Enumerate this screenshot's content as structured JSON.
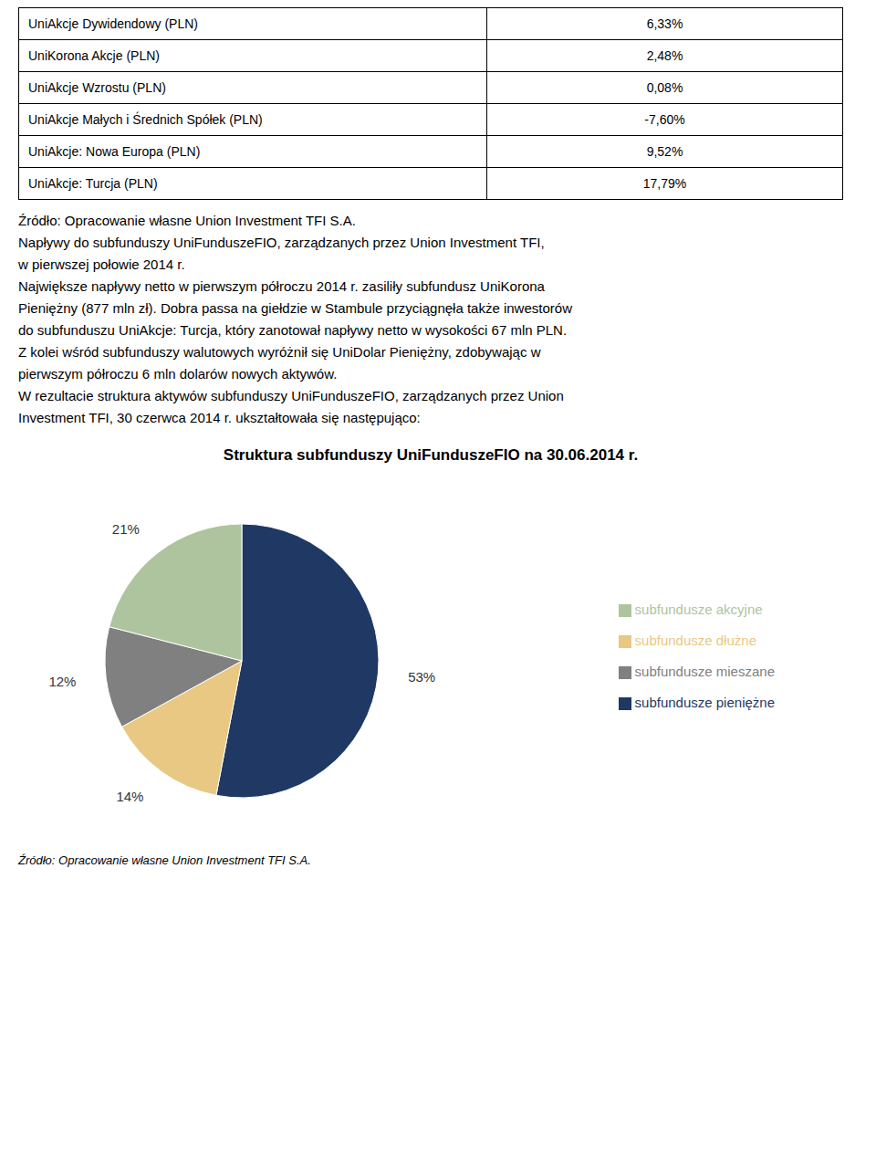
{
  "chart_data": [
    {
      "type": "table",
      "categories": [
        "UniAkcje Dywidendowy (PLN)",
        "UniKorona Akcje (PLN)",
        "UniAkcje Wzrostu (PLN)",
        "UniAkcje Małych i Średnich Spółek (PLN)",
        "UniAkcje: Nowa Europa (PLN)",
        "UniAkcje: Turcja (PLN)"
      ],
      "values": [
        6.33,
        2.48,
        0.08,
        -7.6,
        9.52,
        17.79
      ],
      "value_labels": [
        "6,33%",
        "2,48%",
        "0,08%",
        "-7,60%",
        "9,52%",
        "17,79%"
      ],
      "annotations": [
        "Źródło: Opracowanie własne Union Investment TFI S.A.",
        "Napływy do subfunduszy UniFunduszeFIO, zarządzanych przez Union Investment TFI,",
        "w pierwszej połowie 2014 r.",
        "Największe napływy netto w pierwszym półroczu 2014 r. zasiliły subfundusz UniKorona",
        "Pieniężny (877 mln zł). Dobra passa na giełdzie w Stambule przyciągnęła także inwestorów",
        "do subfunduszu UniAkcje: Turcja, który zanotował napływy netto w wysokości 67 mln PLN.",
        "Z kolei wśród subfunduszy walutowych wyróżnił się UniDolar Pieniężny, zdobywając w",
        "pierwszym półroczu 6 mln dolarów nowych aktywów.",
        "W rezultacie struktura aktywów subfunduszy UniFunduszeFIO, zarządzanych przez Union",
        "Investment TFI, 30 czerwca 2014 r. ukształtowała się następująco:"
      ]
    },
    {
      "type": "pie",
      "title": "Struktura subfunduszy UniFunduszeFIO na 30.06.2014 r.",
      "categories": [
        "subfundusze pieniężne",
        "subfundusze dłużne",
        "subfundusze mieszane",
        "subfundusze akcyjne"
      ],
      "values": [
        53,
        14,
        12,
        21
      ],
      "value_labels": [
        "53%",
        "14%",
        "12%",
        "21%"
      ],
      "colors": [
        "#1f3864",
        "#e8c882",
        "#808080",
        "#aec49e"
      ],
      "data_labels": true,
      "legend": "right",
      "annotations": [
        "Źródło: Opracowanie własne Union Investment TFI S.A."
      ]
    }
  ]
}
